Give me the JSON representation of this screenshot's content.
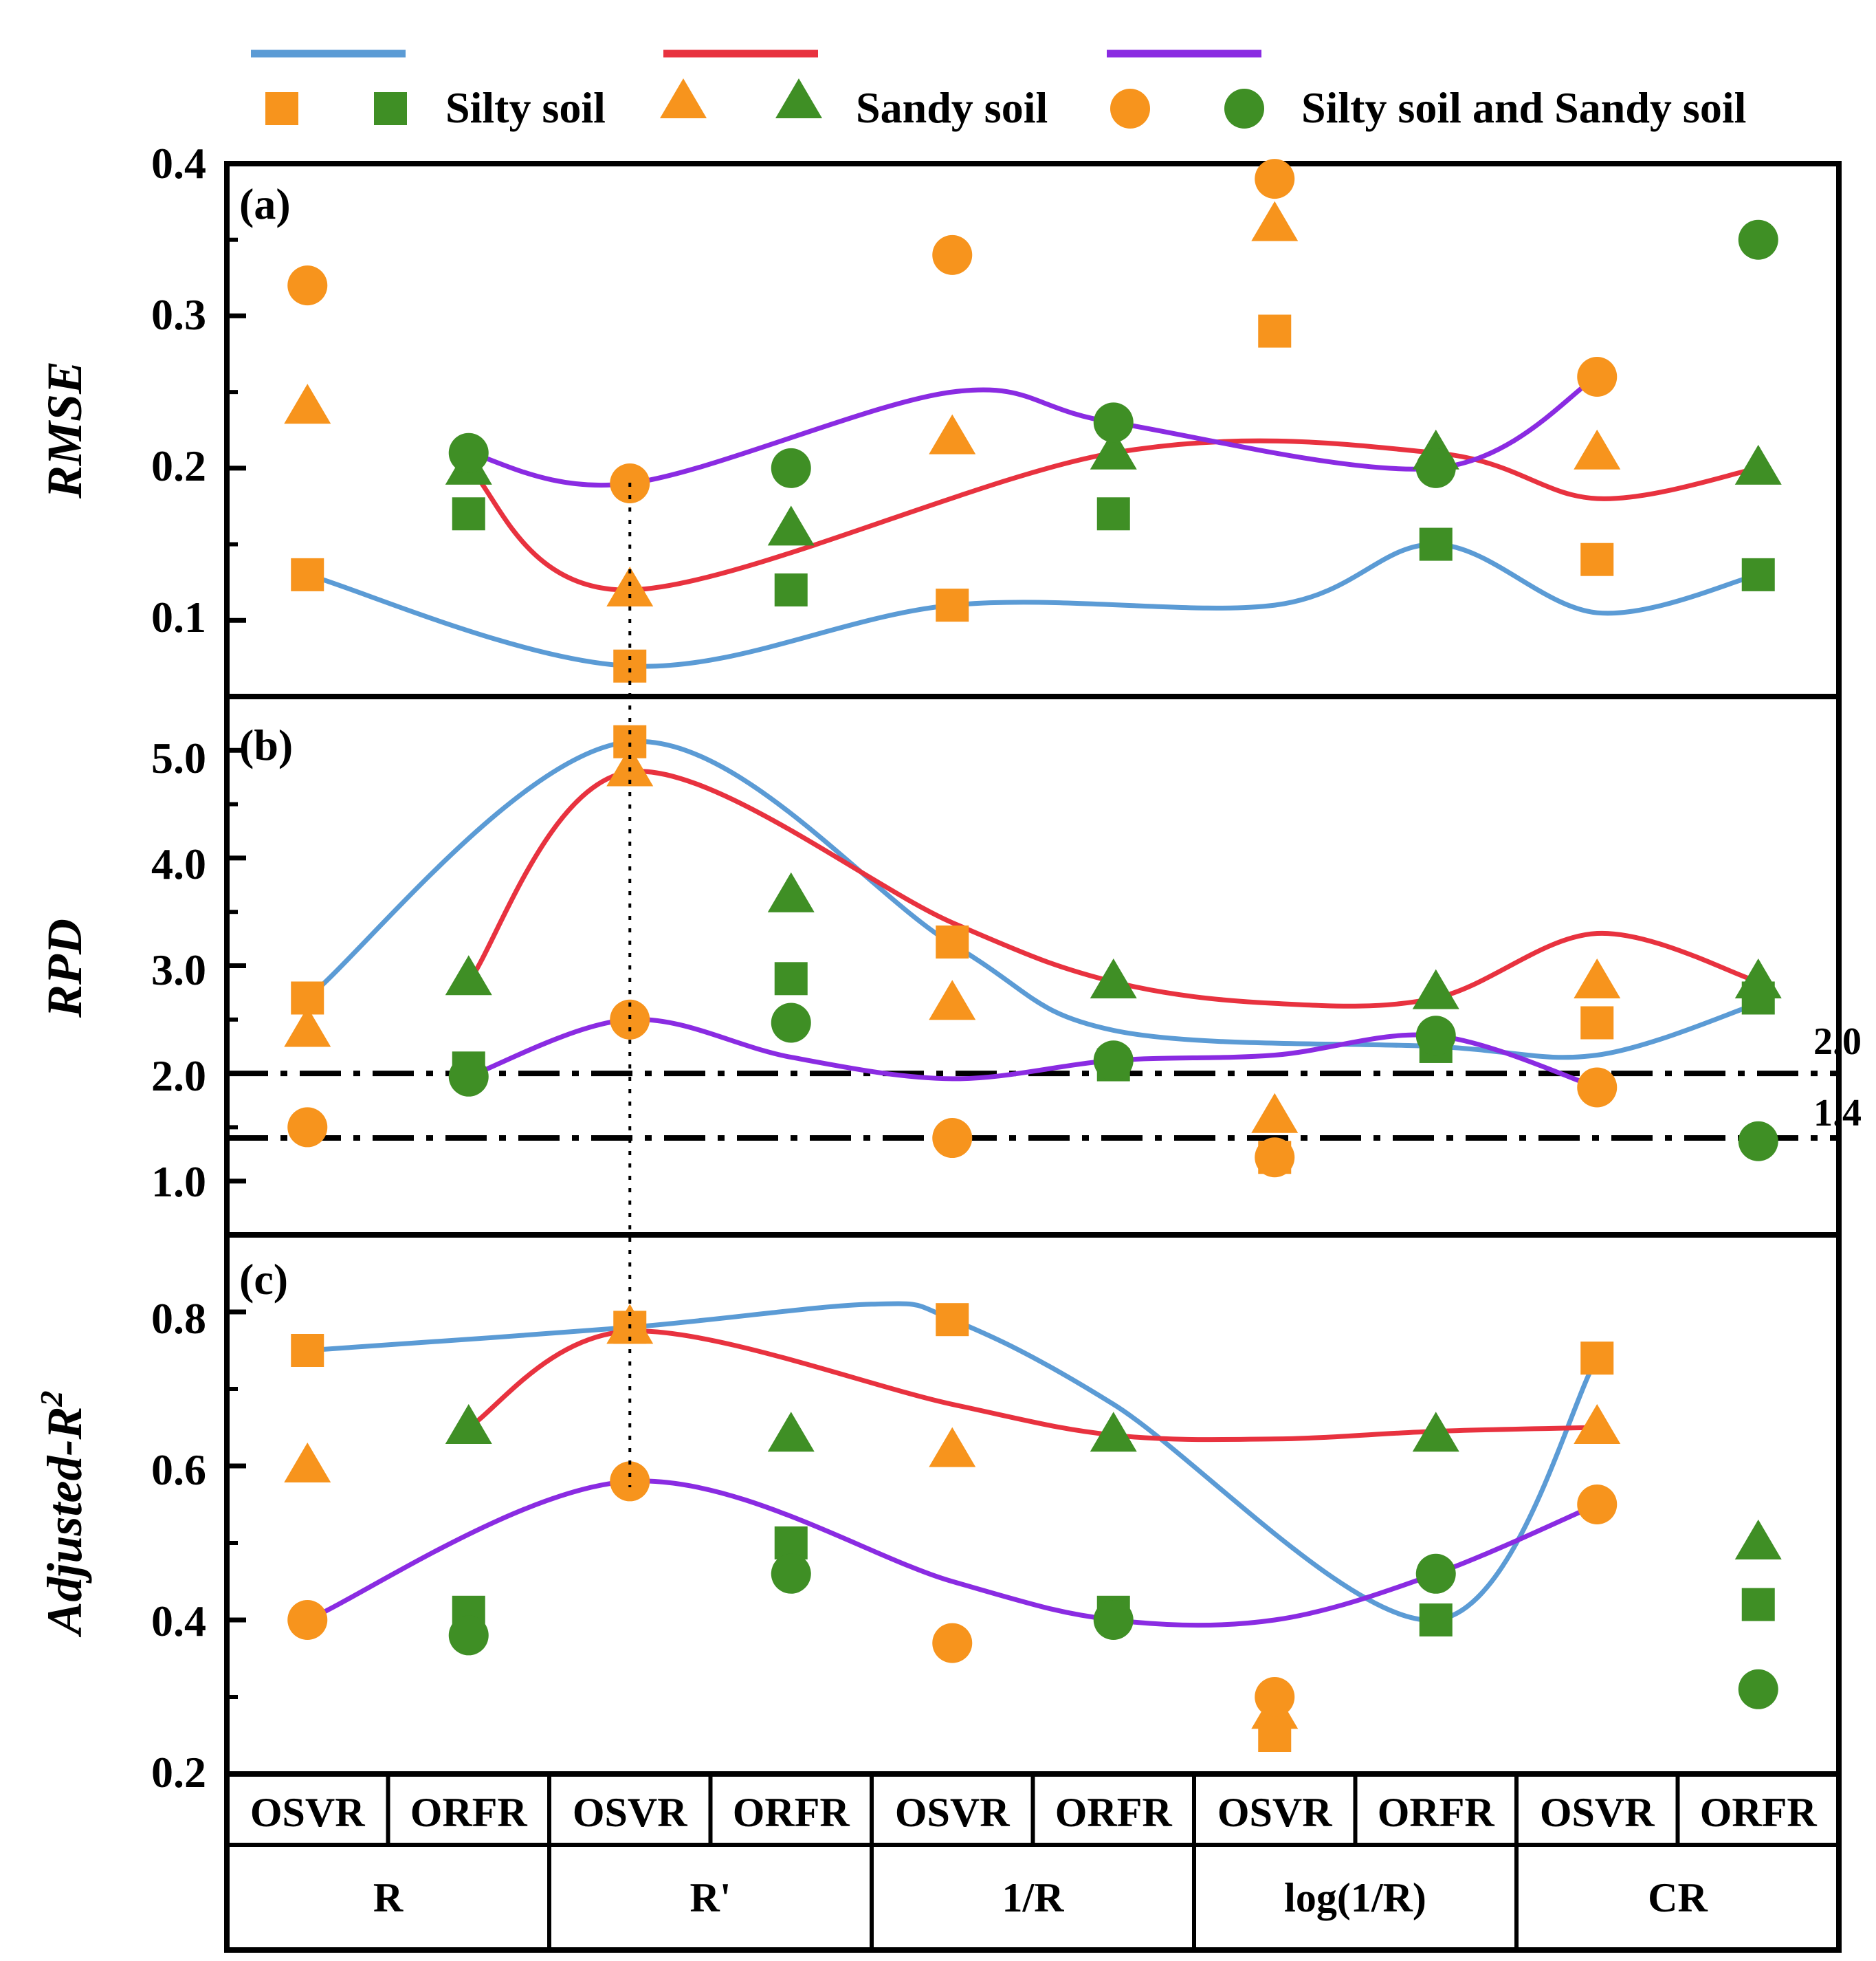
{
  "colors": {
    "orange": "#F7941D",
    "green": "#3F8F25",
    "blue": "#5B9BD5",
    "red": "#E8323F",
    "purple": "#8A2BE2",
    "black": "#000000"
  },
  "legend": {
    "silty": "Silty soil",
    "sandy": "Sandy soil",
    "both": "Silty soil and Sandy soil"
  },
  "x_axis": {
    "models": [
      "OSVR",
      "ORFR",
      "OSVR",
      "ORFR",
      "OSVR",
      "ORFR",
      "OSVR",
      "ORFR",
      "OSVR",
      "ORFR"
    ],
    "groups": [
      "R",
      "R'",
      "1/R",
      "log(1/R)",
      "CR"
    ]
  },
  "chart_data": [
    {
      "type": "scatter",
      "panel": "(a)",
      "ylabel": "RMSE",
      "ylim": [
        0.05,
        0.4
      ],
      "yticks": [
        0.1,
        0.2,
        0.3,
        0.4
      ],
      "ytick_labels": [
        "0.1",
        "0.2",
        "0.3",
        "0.4"
      ],
      "series": [
        {
          "name": "Silty soil",
          "marker": "square",
          "colors": "alternating orange/green",
          "values": [
            0.13,
            0.17,
            0.07,
            0.12,
            0.11,
            0.17,
            0.29,
            0.15,
            0.14,
            0.13
          ]
        },
        {
          "name": "Sandy soil",
          "marker": "triangle",
          "colors": "alternating orange/green",
          "values": [
            0.24,
            0.2,
            0.12,
            0.16,
            0.22,
            0.21,
            0.36,
            0.21,
            0.21,
            0.2
          ]
        },
        {
          "name": "Silty soil and Sandy soil",
          "marker": "circle",
          "colors": "alternating orange/green",
          "values": [
            0.32,
            0.21,
            0.19,
            0.2,
            0.34,
            0.23,
            0.39,
            0.2,
            0.26,
            0.35
          ]
        }
      ],
      "curves": [
        {
          "name": "Silty soil",
          "color": "blue",
          "x": [
            0,
            2,
            4,
            6,
            7,
            8,
            9
          ],
          "values": [
            0.13,
            0.07,
            0.11,
            0.11,
            0.15,
            0.105,
            0.13
          ]
        },
        {
          "name": "Sandy soil",
          "color": "red",
          "x": [
            1,
            2,
            5,
            7,
            8,
            9
          ],
          "values": [
            0.2,
            0.12,
            0.21,
            0.21,
            0.18,
            0.2
          ]
        },
        {
          "name": "Silty soil and Sandy soil",
          "color": "purple",
          "x": [
            1,
            2,
            4,
            5,
            7,
            8
          ],
          "values": [
            0.21,
            0.19,
            0.25,
            0.23,
            0.2,
            0.26
          ]
        }
      ]
    },
    {
      "type": "scatter",
      "panel": "(b)",
      "ylabel": "RPD",
      "ylim": [
        0.5,
        5.5
      ],
      "yticks": [
        1.0,
        2.0,
        3.0,
        4.0,
        5.0
      ],
      "ytick_labels": [
        "1.0",
        "2.0",
        "3.0",
        "4.0",
        "5.0"
      ],
      "reference_lines": [
        {
          "value": 2.0,
          "label": "2.0"
        },
        {
          "value": 1.4,
          "label": "1.4"
        }
      ],
      "series": [
        {
          "name": "Silty soil",
          "marker": "square",
          "colors": "alternating orange/green",
          "values": [
            2.7,
            2.05,
            5.08,
            2.88,
            3.22,
            2.08,
            1.22,
            2.25,
            2.47,
            2.7
          ]
        },
        {
          "name": "Sandy soil",
          "marker": "triangle",
          "colors": "alternating orange/green",
          "values": [
            2.4,
            2.88,
            4.82,
            3.65,
            2.65,
            2.85,
            1.6,
            2.75,
            2.85,
            2.85
          ]
        },
        {
          "name": "Silty soil and Sandy soil",
          "marker": "circle",
          "colors": "alternating orange/green",
          "values": [
            1.5,
            1.97,
            2.5,
            2.47,
            1.4,
            2.12,
            1.22,
            2.35,
            1.87,
            1.37
          ]
        }
      ],
      "curves": [
        {
          "name": "Silty soil",
          "color": "blue",
          "x": [
            0,
            2,
            4,
            5,
            7,
            8,
            9
          ],
          "values": [
            2.7,
            5.08,
            3.2,
            2.4,
            2.25,
            2.17,
            2.65
          ]
        },
        {
          "name": "Sandy soil",
          "color": "red",
          "x": [
            1,
            2,
            4,
            5,
            6,
            7,
            8,
            9
          ],
          "values": [
            2.85,
            4.8,
            3.4,
            2.85,
            2.65,
            2.7,
            3.3,
            2.85
          ]
        },
        {
          "name": "Silty soil and Sandy soil",
          "color": "purple",
          "x": [
            1,
            2,
            3,
            4,
            5,
            6,
            7,
            8
          ],
          "values": [
            1.97,
            2.5,
            2.15,
            1.95,
            2.12,
            2.17,
            2.35,
            1.87
          ]
        }
      ]
    },
    {
      "type": "scatter",
      "panel": "(c)",
      "ylabel": "Adjusted-R",
      "ylabel_sup": "2",
      "ylim": [
        0.2,
        0.9
      ],
      "yticks": [
        0.2,
        0.4,
        0.6,
        0.8
      ],
      "ytick_labels": [
        "0.2",
        "0.4",
        "0.6",
        "0.8"
      ],
      "series": [
        {
          "name": "Silty soil",
          "marker": "square",
          "colors": "alternating orange/green",
          "values": [
            0.75,
            0.41,
            0.78,
            0.5,
            0.79,
            0.41,
            0.25,
            0.4,
            0.74,
            0.42
          ]
        },
        {
          "name": "Sandy soil",
          "marker": "triangle",
          "colors": "alternating orange/green",
          "values": [
            0.6,
            0.65,
            0.78,
            0.64,
            0.62,
            0.64,
            0.28,
            0.64,
            0.65,
            0.5
          ]
        },
        {
          "name": "Silty soil and Sandy soil",
          "marker": "circle",
          "colors": "alternating orange/green",
          "values": [
            0.4,
            0.38,
            0.58,
            0.46,
            0.37,
            0.4,
            0.3,
            0.46,
            0.55,
            0.31
          ]
        }
      ],
      "curves": [
        {
          "name": "Silty soil",
          "color": "blue",
          "x": [
            0,
            2,
            3.5,
            4,
            5,
            7,
            8
          ],
          "values": [
            0.75,
            0.78,
            0.81,
            0.79,
            0.68,
            0.4,
            0.74
          ]
        },
        {
          "name": "Sandy soil",
          "color": "red",
          "x": [
            1,
            2,
            4,
            5,
            6,
            7,
            8
          ],
          "values": [
            0.65,
            0.775,
            0.68,
            0.64,
            0.635,
            0.645,
            0.65
          ]
        },
        {
          "name": "Silty soil and Sandy soil",
          "color": "purple",
          "x": [
            0,
            2,
            4,
            5,
            6,
            7,
            8
          ],
          "values": [
            0.4,
            0.58,
            0.45,
            0.4,
            0.4,
            0.46,
            0.55
          ]
        }
      ]
    }
  ]
}
